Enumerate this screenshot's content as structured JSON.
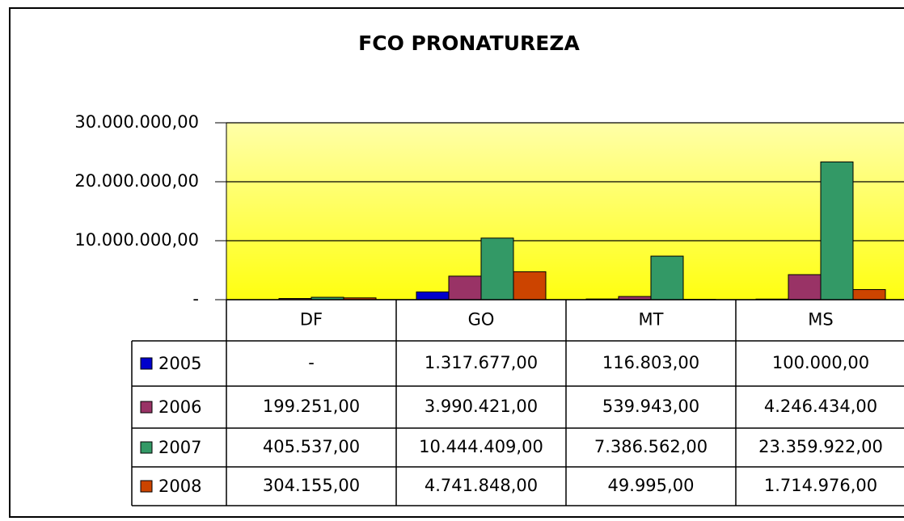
{
  "chart_data": {
    "type": "bar",
    "title": "FCO PRONATUREZA",
    "categories": [
      "DF",
      "GO",
      "MT",
      "MS"
    ],
    "series": [
      {
        "name": "2005",
        "color": "#0000cc",
        "values": [
          0,
          1317677,
          116803,
          100000
        ],
        "value_labels": [
          "-",
          "1.317.677,00",
          "116.803,00",
          "100.000,00"
        ]
      },
      {
        "name": "2006",
        "color": "#993366",
        "values": [
          199251,
          3990421,
          539943,
          4246434
        ],
        "value_labels": [
          "199.251,00",
          "3.990.421,00",
          "539.943,00",
          "4.246.434,00"
        ]
      },
      {
        "name": "2007",
        "color": "#339966",
        "values": [
          405537,
          10444409,
          7386562,
          23359922
        ],
        "value_labels": [
          "405.537,00",
          "10.444.409,00",
          "7.386.562,00",
          "23.359.922,00"
        ]
      },
      {
        "name": "2008",
        "color": "#cc4400",
        "values": [
          304155,
          4741848,
          49995,
          1714976
        ],
        "value_labels": [
          "304.155,00",
          "4.741.848,00",
          "49.995,00",
          "1.714.976,00"
        ]
      }
    ],
    "ylim": [
      0,
      30000000
    ],
    "yticks": [
      {
        "value": 0,
        "label": "-"
      },
      {
        "value": 10000000,
        "label": "10.000.000,00"
      },
      {
        "value": 20000000,
        "label": "20.000.000,00"
      },
      {
        "value": 30000000,
        "label": "30.000.000,00"
      }
    ],
    "grid": true
  }
}
